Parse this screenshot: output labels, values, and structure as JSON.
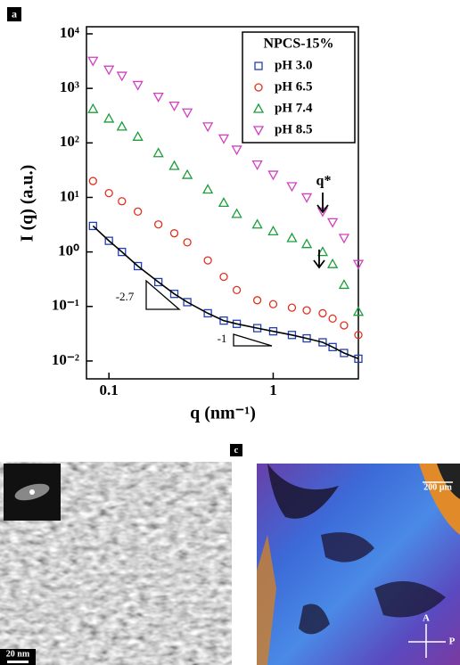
{
  "chart_data": {
    "type": "scatter",
    "y_label": "I (q) (a.u.)",
    "x_label": "q (nm⁻¹)",
    "legend_title": "NPCS-15%",
    "legend": "upper right",
    "log_x": true,
    "log_y": true,
    "xlim": [
      0.073,
      3.3
    ],
    "ylim": [
      0.0047,
      13500
    ],
    "xticks": [
      0.1,
      1
    ],
    "yticks": [
      {
        "value": 0.01,
        "label": "10⁻²"
      },
      {
        "value": 0.1,
        "label": "10⁻¹"
      },
      {
        "value": 1,
        "label": "10⁰"
      },
      {
        "value": 10,
        "label": "10¹"
      },
      {
        "value": 100,
        "label": "10²"
      },
      {
        "value": 1000,
        "label": "10³"
      },
      {
        "value": 10000,
        "label": "10⁴"
      }
    ],
    "x": [
      0.08,
      0.1,
      0.12,
      0.15,
      0.2,
      0.25,
      0.3,
      0.4,
      0.5,
      0.6,
      0.8,
      1,
      1.3,
      1.6,
      2,
      2.3,
      2.7,
      3.3
    ],
    "series": [
      {
        "name": "pH 3.0",
        "color": "#2040b0",
        "marker": "square",
        "fit": true,
        "values": [
          3.0,
          1.6,
          1.0,
          0.55,
          0.28,
          0.17,
          0.12,
          0.075,
          0.055,
          0.048,
          0.04,
          0.035,
          0.03,
          0.026,
          0.022,
          0.018,
          0.014,
          0.011
        ]
      },
      {
        "name": "pH 6.5",
        "color": "#e0301e",
        "marker": "circle",
        "values": [
          20,
          12,
          8.5,
          5.5,
          3.2,
          2.2,
          1.5,
          0.7,
          0.35,
          0.2,
          0.13,
          0.11,
          0.095,
          0.085,
          0.075,
          0.06,
          0.045,
          0.03
        ]
      },
      {
        "name": "pH 7.4",
        "color": "#1a9e3a",
        "marker": "triangle-up",
        "values": [
          420,
          280,
          200,
          130,
          65,
          38,
          26,
          14,
          8,
          5,
          3.2,
          2.4,
          1.8,
          1.4,
          1.0,
          0.6,
          0.25,
          0.08
        ]
      },
      {
        "name": "pH 8.5",
        "color": "#d040c0",
        "marker": "triangle-down",
        "values": [
          3200,
          2200,
          1700,
          1150,
          700,
          480,
          360,
          200,
          120,
          75,
          40,
          26,
          16,
          10,
          5.5,
          3.5,
          1.8,
          0.6
        ]
      }
    ],
    "annotations": [
      "q*",
      "-2.7",
      "-1"
    ]
  },
  "panel_labels": [
    "a",
    "c"
  ],
  "images": {
    "tem_scale": "20 nm",
    "pom_scale": "200 µm",
    "analyzer": "A",
    "polarizer": "P"
  }
}
